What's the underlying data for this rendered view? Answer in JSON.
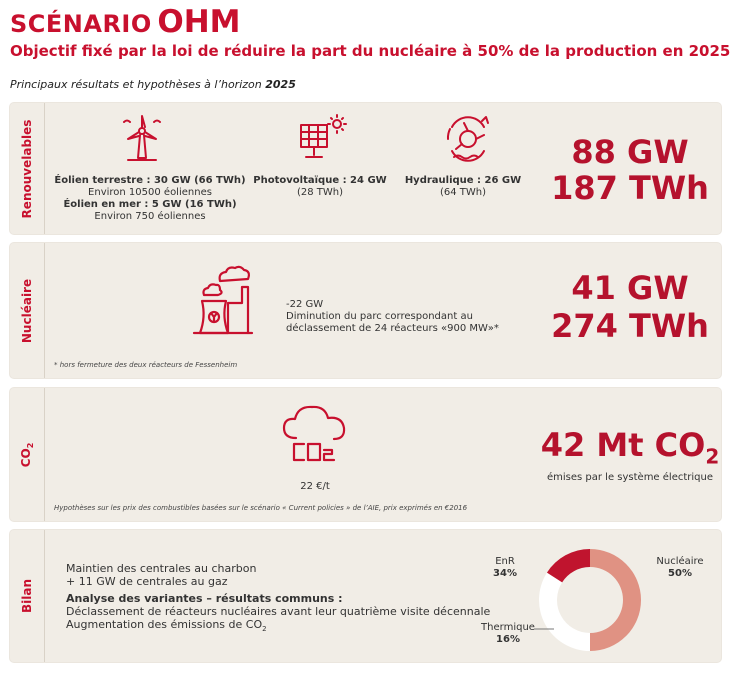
{
  "header": {
    "title_part1": "SCÉNARIO",
    "title_part2": "OHM",
    "subtitle": "Objectif fixé par la loi de réduire la part du nucléaire à 50% de la production en 2025",
    "intro_text": "Principaux résultats et hypothèses à l’horizon",
    "intro_year": "2025"
  },
  "renouvelables": {
    "label": "Renouvelables",
    "eolien_terrestre": "Éolien terrestre : 30 GW (66 TWh)",
    "eolien_terrestre_count": "Environ 10500 éoliennes",
    "eolien_mer": "Éolien en mer : 5 GW (16 TWh)",
    "eolien_mer_count": "Environ 750 éoliennes",
    "pv": "Photovoltaïque : 24 GW",
    "pv_twh": "(28 TWh)",
    "hydro": "Hydraulique : 26 GW",
    "hydro_twh": "(64 TWh)",
    "gw": "88 GW",
    "twh": "187 TWh"
  },
  "nucleaire": {
    "label": "Nucléaire",
    "delta": "-22 GW",
    "desc1": "Diminution du parc correspondant au",
    "desc2": "déclassement de 24 réacteurs «900 MW»*",
    "note": "* hors fermeture des deux réacteurs de Fessenheim",
    "gw": "41 GW",
    "twh": "274 TWh"
  },
  "co2": {
    "label": "CO",
    "label_sub": "2",
    "price": "22 €/t",
    "value": "42 Mt CO",
    "value_sub": "2",
    "value_desc": "émises par le système électrique",
    "note": "Hypothèses sur les prix des combustibles basées sur le scénario « Current policies » de l’AIE, prix exprimés en €2016",
    "icon_text": "CO2"
  },
  "bilan": {
    "label": "Bilan",
    "line1": "Maintien des centrales au charbon",
    "line2": "+ 11 GW de centrales au gaz",
    "heading": "Analyse des variantes – résultats communs :",
    "line3": "Déclassement de réacteurs nucléaires avant leur quatrième visite décennale",
    "line4_prefix": "Augmentation des émissions de CO",
    "line4_sub": "2"
  },
  "colors": {
    "accent": "#c8102e",
    "big_value": "#b5122d",
    "panel": "#f1ede6",
    "nucleaire_slice": "#e09283",
    "thermique_slice": "#c0142e",
    "enr_slice": "#ffffff"
  },
  "chart_data": {
    "type": "pie",
    "style": "donut",
    "categories": [
      "Nucléaire",
      "EnR",
      "Thermique"
    ],
    "values": [
      50,
      34,
      16
    ],
    "labels": [
      "50%",
      "34%",
      "16%"
    ],
    "colors": [
      "#e09283",
      "#ffffff",
      "#c0142e"
    ]
  }
}
